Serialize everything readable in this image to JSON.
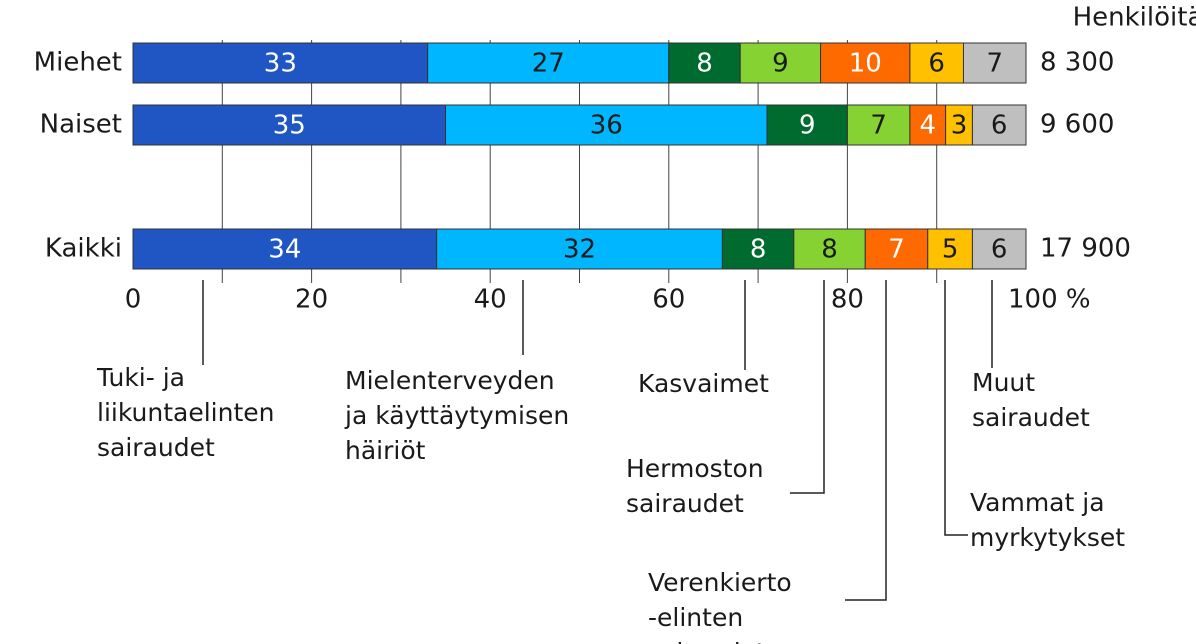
{
  "chart_data": {
    "type": "stacked_bar_horizontal",
    "categories": [
      "Miehet",
      "Naiset",
      null,
      "Kaikki"
    ],
    "series": [
      {
        "name": "Tuki- ja\nliikuntaelinten\nsairaudet",
        "color": "#1f56c3",
        "text_color": "#ffffff",
        "values": [
          33,
          35,
          null,
          34
        ]
      },
      {
        "name": "Mielenterveyden\nja käyttäytymisen\nhäiriöt",
        "color": "#00b6ff",
        "text_color": "#1a1a1a",
        "values": [
          27,
          36,
          null,
          32
        ]
      },
      {
        "name": "Kasvaimet",
        "color": "#006b2e",
        "text_color": "#ffffff",
        "values": [
          8,
          9,
          null,
          8
        ]
      },
      {
        "name": "Hermoston\nsairaudet",
        "color": "#86d232",
        "text_color": "#1a1a1a",
        "values": [
          9,
          7,
          null,
          8
        ]
      },
      {
        "name": "Verenkierto\n-elinten\nsairaudet",
        "color": "#ff6a00",
        "text_color": "#ffffff",
        "values": [
          10,
          4,
          null,
          7
        ]
      },
      {
        "name": "Vammat ja\nmyrkytykset",
        "color": "#ffc000",
        "text_color": "#1a1a1a",
        "values": [
          6,
          3,
          null,
          5
        ]
      },
      {
        "name": "Muut\nsairaudet",
        "color": "#bfbfbf",
        "text_color": "#1a1a1a",
        "values": [
          7,
          6,
          null,
          6
        ]
      }
    ],
    "xlim": [
      0,
      100
    ],
    "xticks": [
      0,
      20,
      40,
      60,
      80,
      {
        "value": 100,
        "label": "100 %"
      }
    ],
    "xgridlines": [
      10,
      20,
      30,
      40,
      50,
      60,
      70,
      80,
      90
    ],
    "totals": {
      "title": "Henkilöitä",
      "values": [
        8300,
        9600,
        null,
        17900
      ],
      "value_labels": [
        "8 300",
        "9 600",
        null,
        "17 900"
      ]
    }
  }
}
